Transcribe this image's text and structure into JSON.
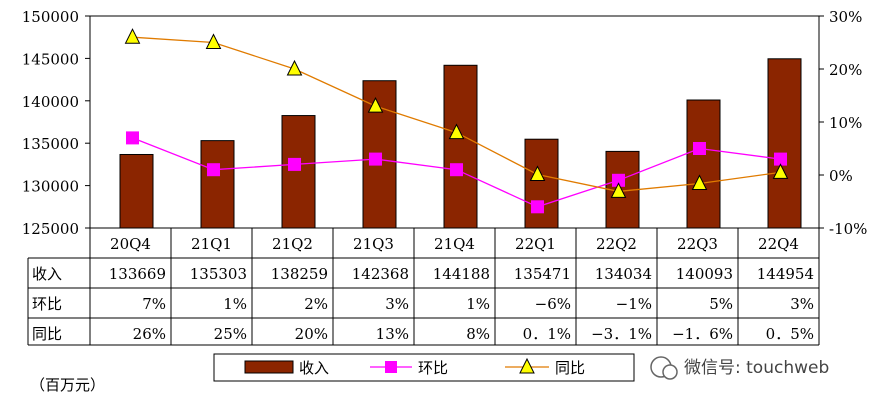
{
  "chart_data": {
    "type": "bar",
    "categories": [
      "20Q4",
      "21Q1",
      "21Q2",
      "21Q3",
      "21Q4",
      "22Q1",
      "22Q2",
      "22Q3",
      "22Q4"
    ],
    "series": [
      {
        "name": "收入",
        "type": "bar",
        "axis": "left",
        "color": "#8b2500",
        "values": [
          133669,
          135303,
          138259,
          142368,
          144188,
          135471,
          134034,
          140093,
          144954
        ]
      },
      {
        "name": "环比",
        "type": "line",
        "axis": "right",
        "color": "#ff00ff",
        "marker": "square",
        "values": [
          7,
          1,
          2,
          3,
          1,
          -6,
          -1,
          5,
          3
        ]
      },
      {
        "name": "同比",
        "type": "line",
        "axis": "right",
        "color": "#e07b00",
        "marker": "triangle",
        "marker_fill": "#ffff00",
        "values": [
          26,
          25,
          20,
          13,
          8,
          0.1,
          -3.1,
          -1.6,
          0.5
        ]
      }
    ],
    "y_left": {
      "ylim": [
        125000,
        150000
      ],
      "ticks": [
        "125000",
        "130000",
        "135000",
        "140000",
        "145000",
        "150000"
      ]
    },
    "y_right": {
      "ylim": [
        -10,
        30
      ],
      "ticks": [
        "-10%",
        "0%",
        "10%",
        "20%",
        "30%"
      ]
    },
    "grid": false,
    "legend_placement": "bottom-center",
    "table": {
      "rows": [
        {
          "label": "收入",
          "cells": [
            "133669",
            "135303",
            "138259",
            "142368",
            "144188",
            "135471",
            "134034",
            "140093",
            "144954"
          ]
        },
        {
          "label": "环比",
          "cells": [
            "7%",
            "1%",
            "2%",
            "3%",
            "1%",
            "−6%",
            "−1%",
            "5%",
            "3%"
          ]
        },
        {
          "label": "同比",
          "cells": [
            "26%",
            "25%",
            "20%",
            "13%",
            "8%",
            "0．1%",
            "−3．1%",
            "−1．6%",
            "0．5%"
          ]
        }
      ]
    },
    "unit_note": "（百万元）",
    "watermark": "微信号: touchweb"
  }
}
